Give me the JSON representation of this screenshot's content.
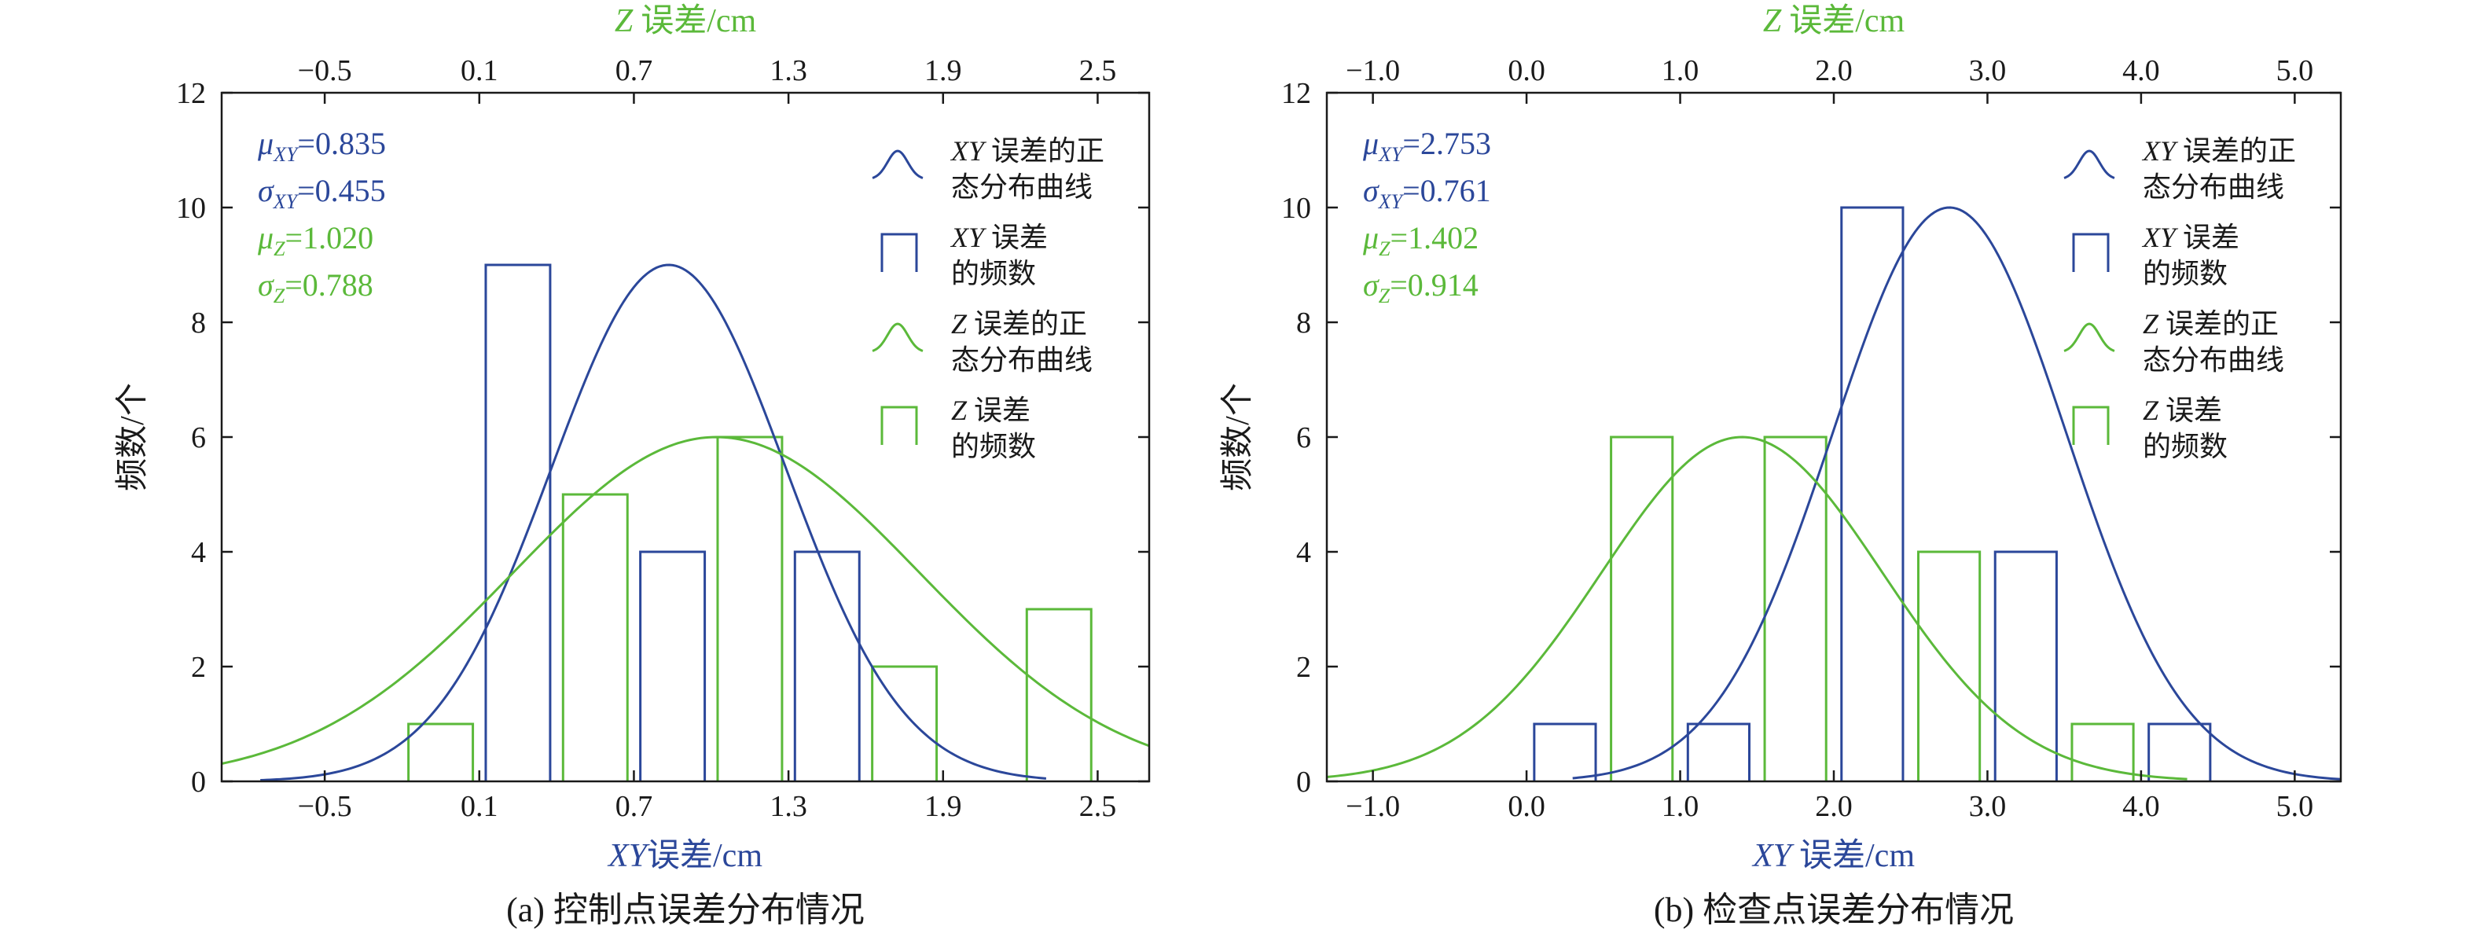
{
  "colors": {
    "blue": "#2b479a",
    "green": "#5bb93a",
    "axis": "#1a1a1a"
  },
  "chart_data": [
    {
      "type": "bar",
      "caption": "(a) 控制点误差分布情况",
      "xlabel_var": "XY",
      "xlabel_unit": "误差/cm",
      "x2label_var": "Z",
      "x2label_unit": "误差/cm",
      "ylabel": "频数/个",
      "xlim": [
        -0.9,
        2.7
      ],
      "x_ticks": [
        -0.5,
        0.1,
        0.7,
        1.3,
        1.9,
        2.5
      ],
      "x_tick_labels": [
        "−0.5",
        "0.1",
        "0.7",
        "1.3",
        "1.9",
        "2.5"
      ],
      "ylim": [
        0,
        12
      ],
      "y_ticks": [
        0,
        2,
        4,
        6,
        8,
        10,
        12
      ],
      "stats": [
        {
          "sym": "μ",
          "sub": "XY",
          "value": "=0.835",
          "color": "blue"
        },
        {
          "sym": "σ",
          "sub": "XY",
          "value": "=0.455",
          "color": "blue"
        },
        {
          "sym": "μ",
          "sub": "Z",
          "value": "=1.020",
          "color": "green"
        },
        {
          "sym": "σ",
          "sub": "Z",
          "value": "=0.788",
          "color": "green"
        }
      ],
      "legend": [
        {
          "kind": "curve",
          "color": "blue",
          "var": "XY",
          "line1": " 误差的正",
          "line2": "态分布曲线"
        },
        {
          "kind": "bar",
          "color": "blue",
          "var": "XY",
          "line1": " 误差",
          "line2": "的频数"
        },
        {
          "kind": "curve",
          "color": "green",
          "var": "Z",
          "line1": " 误差的正",
          "line2": "态分布曲线"
        },
        {
          "kind": "bar",
          "color": "green",
          "var": "Z",
          "line1": " 误差",
          "line2": "的频数"
        }
      ],
      "series": [
        {
          "color": "blue",
          "bar_width": 0.25,
          "centers": [
            0.25,
            0.85,
            1.45
          ],
          "values": [
            9,
            4,
            4
          ]
        },
        {
          "color": "green",
          "bar_width": 0.25,
          "centers": [
            -0.05,
            0.55,
            1.15,
            1.75,
            2.35
          ],
          "values": [
            1,
            5,
            6,
            2,
            3
          ]
        }
      ],
      "curves": [
        {
          "color": "blue",
          "mu": 0.835,
          "sigma": 0.455,
          "peak": 9,
          "x_range": [
            -0.75,
            2.3
          ]
        },
        {
          "color": "green",
          "mu": 1.02,
          "sigma": 0.788,
          "peak": 6,
          "x_range": [
            -0.9,
            2.7
          ]
        }
      ]
    },
    {
      "type": "bar",
      "caption": "(b) 检查点误差分布情况",
      "xlabel_var": "XY",
      "xlabel_unit": "误差/cm",
      "x2label_var": "Z",
      "x2label_unit": "误差/cm",
      "ylabel": "频数/个",
      "xlim": [
        -1.3,
        5.3
      ],
      "x_ticks": [
        -1.0,
        0.0,
        1.0,
        2.0,
        3.0,
        4.0,
        5.0
      ],
      "x_tick_labels": [
        "−1.0",
        "0.0",
        "1.0",
        "2.0",
        "3.0",
        "4.0",
        "5.0"
      ],
      "ylim": [
        0,
        12
      ],
      "y_ticks": [
        0,
        2,
        4,
        6,
        8,
        10,
        12
      ],
      "stats": [
        {
          "sym": "μ",
          "sub": "XY",
          "value": "=2.753",
          "color": "blue"
        },
        {
          "sym": "σ",
          "sub": "XY",
          "value": "=0.761",
          "color": "blue"
        },
        {
          "sym": "μ",
          "sub": "Z",
          "value": "=1.402",
          "color": "green"
        },
        {
          "sym": "σ",
          "sub": "Z",
          "value": "=0.914",
          "color": "green"
        }
      ],
      "legend": [
        {
          "kind": "curve",
          "color": "blue",
          "var": "XY",
          "line1": " 误差的正",
          "line2": "态分布曲线"
        },
        {
          "kind": "bar",
          "color": "blue",
          "var": "XY",
          "line1": " 误差",
          "line2": "的频数"
        },
        {
          "kind": "curve",
          "color": "green",
          "var": "Z",
          "line1": " 误差的正",
          "line2": "态分布曲线"
        },
        {
          "kind": "bar",
          "color": "green",
          "var": "Z",
          "line1": " 误差",
          "line2": "的频数"
        }
      ],
      "series": [
        {
          "color": "blue",
          "bar_width": 0.4,
          "centers": [
            0.25,
            1.25,
            2.25,
            3.25,
            4.25
          ],
          "values": [
            1,
            1,
            10,
            4,
            1
          ]
        },
        {
          "color": "green",
          "bar_width": 0.4,
          "centers": [
            0.75,
            1.75,
            2.75,
            3.75
          ],
          "values": [
            6,
            6,
            4,
            1
          ]
        }
      ],
      "curves": [
        {
          "color": "blue",
          "mu": 2.753,
          "sigma": 0.761,
          "peak": 10,
          "x_range": [
            0.3,
            5.3
          ]
        },
        {
          "color": "green",
          "mu": 1.402,
          "sigma": 0.914,
          "peak": 6,
          "x_range": [
            -1.3,
            4.3
          ]
        }
      ]
    }
  ]
}
